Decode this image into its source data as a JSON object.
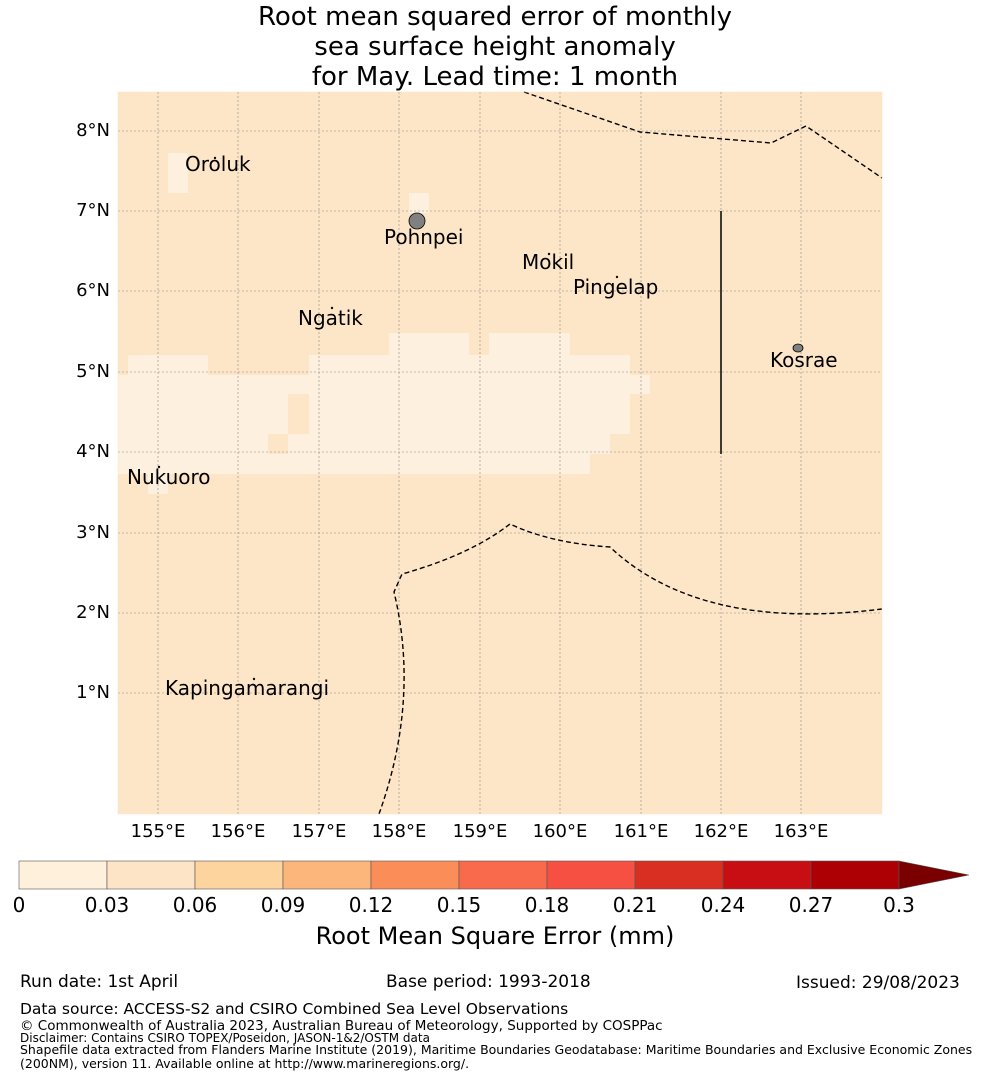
{
  "title": {
    "line1": "Root mean squared error of monthly",
    "line2": "sea surface height anomaly",
    "line3": "for May. Lead time: 1 month"
  },
  "map": {
    "background_color": "#fde6c7",
    "low_error_color": "#fef0de",
    "land_color": "#808080",
    "lat_ticks": [
      "8°N",
      "7°N",
      "6°N",
      "5°N",
      "4°N",
      "3°N",
      "2°N",
      "1°N"
    ],
    "lon_ticks": [
      "155°E",
      "156°E",
      "157°E",
      "158°E",
      "159°E",
      "160°E",
      "161°E",
      "162°E",
      "163°E"
    ],
    "places": {
      "oroluk": "Oroluk",
      "pohnpei": "Pohnpei",
      "mokil": "Mokil",
      "pingelap": "Pingelap",
      "ngatik": "Ngatik",
      "kosrae": "Kosrae",
      "nukuoro": "Nukuoro",
      "kapingamarangi": "Kapingamarangi"
    }
  },
  "colorbar": {
    "ticks": [
      "0",
      "0.03",
      "0.06",
      "0.09",
      "0.12",
      "0.15",
      "0.18",
      "0.21",
      "0.24",
      "0.27",
      "0.3"
    ],
    "colors": [
      "#fff0dc",
      "#fee4c6",
      "#fdd39e",
      "#fcb57a",
      "#fb8d58",
      "#f96a4c",
      "#f55042",
      "#d92e22",
      "#c80e12",
      "#ac0005"
    ],
    "extend_color": "#7a0000",
    "label": "Root Mean Square Error (mm)"
  },
  "footer": {
    "run_date": "Run date: 1st April",
    "base_period": "Base period: 1993-2018",
    "issued": "Issued: 29/08/2023",
    "data_source": "Data source: ACCESS-S2 and CSIRO Combined Sea Level Observations",
    "copyright": "© Commonwealth of Australia 2023, Australian Bureau of Meteorology, Supported by COSPPac",
    "disclaimer": "Disclaimer: Contains CSIRO TOPEX/Poseidon, JASON-1&2/OSTM data",
    "shapefile1": "Shapefile data extracted from Flanders Marine Institute (2019), Maritime Boundaries Geodatabase: Maritime Boundaries and Exclusive Economic Zones",
    "shapefile2": "(200NM), version 11. Available online at http://www.marineregions.org/."
  }
}
